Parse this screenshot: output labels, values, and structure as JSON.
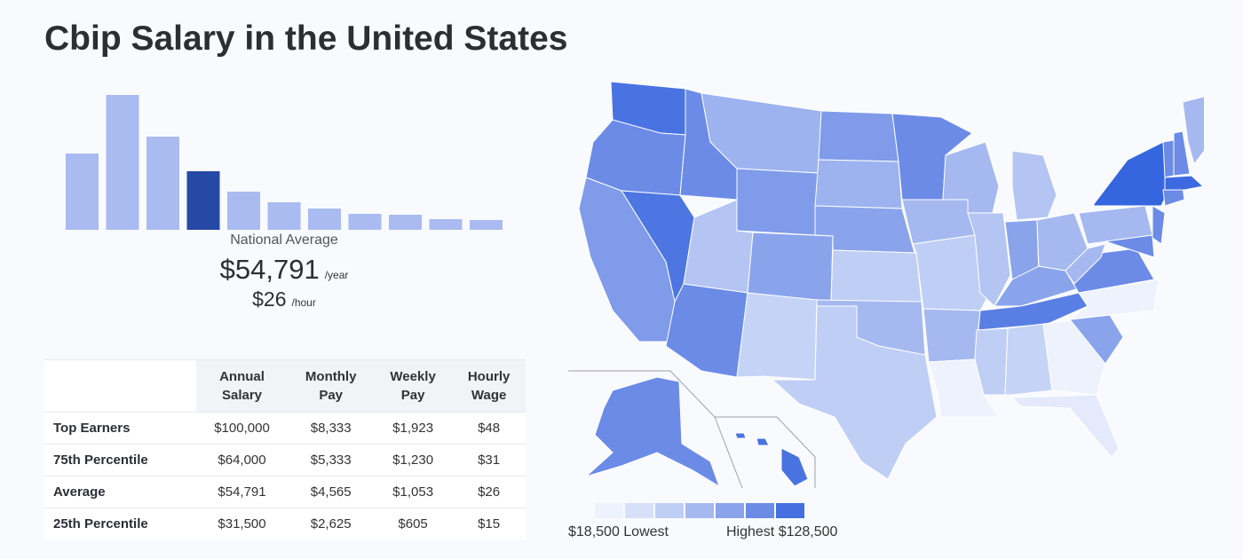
{
  "title": "Cbip Salary in the United States",
  "chart_data": {
    "type": "bar",
    "title": "",
    "values": [
      86,
      152,
      105,
      66,
      43,
      31,
      24,
      18,
      17,
      12,
      11
    ],
    "highlight_index": 3,
    "colors": {
      "bar": "#a9bbf0",
      "highlight": "#2749a6"
    }
  },
  "national_average": {
    "label": "National Average",
    "yearly": "$54,791",
    "yearly_unit": "/year",
    "hourly": "$26",
    "hourly_unit": "/hour"
  },
  "table": {
    "headers": [
      "",
      "Annual\nSalary",
      "Monthly\nPay",
      "Weekly\nPay",
      "Hourly\nWage"
    ],
    "rows": [
      {
        "label": "Top Earners",
        "annual": "$100,000",
        "monthly": "$8,333",
        "weekly": "$1,923",
        "hourly": "$48"
      },
      {
        "label": "75th Percentile",
        "annual": "$64,000",
        "monthly": "$5,333",
        "weekly": "$1,230",
        "hourly": "$31"
      },
      {
        "label": "Average",
        "annual": "$54,791",
        "monthly": "$4,565",
        "weekly": "$1,053",
        "hourly": "$26"
      },
      {
        "label": "25th Percentile",
        "annual": "$31,500",
        "monthly": "$2,625",
        "weekly": "$605",
        "hourly": "$15"
      }
    ]
  },
  "map": {
    "legend_low": "$18,500 Lowest",
    "legend_high": "Highest $128,500",
    "scale_colors": [
      "#eef2fc",
      "#d6e0f8",
      "#bfcef5",
      "#a5b9f0",
      "#8aa4ec",
      "#6b8be7",
      "#456fe0"
    ]
  }
}
